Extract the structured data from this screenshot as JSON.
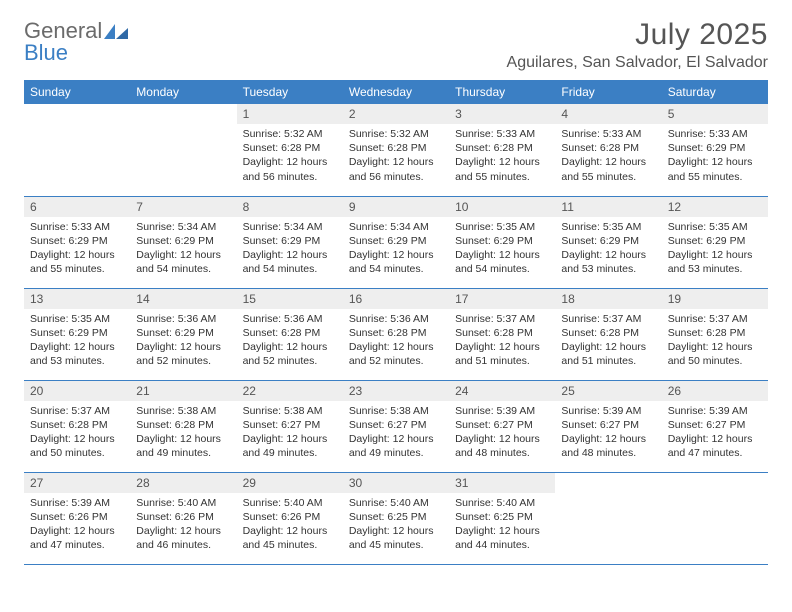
{
  "branding": {
    "word1": "General",
    "word2": "Blue",
    "logo_color": "#3b7fc4",
    "text_color_muted": "#6b6b6b"
  },
  "header": {
    "title": "July 2025",
    "location": "Aguilares, San Salvador, El Salvador"
  },
  "calendar": {
    "type": "table",
    "columns": [
      "Sunday",
      "Monday",
      "Tuesday",
      "Wednesday",
      "Thursday",
      "Friday",
      "Saturday"
    ],
    "header_bg": "#3b7fc4",
    "header_fg": "#ffffff",
    "daynum_bg": "#eeeeee",
    "daynum_fg": "#555555",
    "border_color": "#3b7fc4",
    "cell_font_size_pt": 8,
    "weeks": [
      [
        null,
        null,
        {
          "day": "1",
          "sunrise": "Sunrise: 5:32 AM",
          "sunset": "Sunset: 6:28 PM",
          "daylight": "Daylight: 12 hours and 56 minutes."
        },
        {
          "day": "2",
          "sunrise": "Sunrise: 5:32 AM",
          "sunset": "Sunset: 6:28 PM",
          "daylight": "Daylight: 12 hours and 56 minutes."
        },
        {
          "day": "3",
          "sunrise": "Sunrise: 5:33 AM",
          "sunset": "Sunset: 6:28 PM",
          "daylight": "Daylight: 12 hours and 55 minutes."
        },
        {
          "day": "4",
          "sunrise": "Sunrise: 5:33 AM",
          "sunset": "Sunset: 6:28 PM",
          "daylight": "Daylight: 12 hours and 55 minutes."
        },
        {
          "day": "5",
          "sunrise": "Sunrise: 5:33 AM",
          "sunset": "Sunset: 6:29 PM",
          "daylight": "Daylight: 12 hours and 55 minutes."
        }
      ],
      [
        {
          "day": "6",
          "sunrise": "Sunrise: 5:33 AM",
          "sunset": "Sunset: 6:29 PM",
          "daylight": "Daylight: 12 hours and 55 minutes."
        },
        {
          "day": "7",
          "sunrise": "Sunrise: 5:34 AM",
          "sunset": "Sunset: 6:29 PM",
          "daylight": "Daylight: 12 hours and 54 minutes."
        },
        {
          "day": "8",
          "sunrise": "Sunrise: 5:34 AM",
          "sunset": "Sunset: 6:29 PM",
          "daylight": "Daylight: 12 hours and 54 minutes."
        },
        {
          "day": "9",
          "sunrise": "Sunrise: 5:34 AM",
          "sunset": "Sunset: 6:29 PM",
          "daylight": "Daylight: 12 hours and 54 minutes."
        },
        {
          "day": "10",
          "sunrise": "Sunrise: 5:35 AM",
          "sunset": "Sunset: 6:29 PM",
          "daylight": "Daylight: 12 hours and 54 minutes."
        },
        {
          "day": "11",
          "sunrise": "Sunrise: 5:35 AM",
          "sunset": "Sunset: 6:29 PM",
          "daylight": "Daylight: 12 hours and 53 minutes."
        },
        {
          "day": "12",
          "sunrise": "Sunrise: 5:35 AM",
          "sunset": "Sunset: 6:29 PM",
          "daylight": "Daylight: 12 hours and 53 minutes."
        }
      ],
      [
        {
          "day": "13",
          "sunrise": "Sunrise: 5:35 AM",
          "sunset": "Sunset: 6:29 PM",
          "daylight": "Daylight: 12 hours and 53 minutes."
        },
        {
          "day": "14",
          "sunrise": "Sunrise: 5:36 AM",
          "sunset": "Sunset: 6:29 PM",
          "daylight": "Daylight: 12 hours and 52 minutes."
        },
        {
          "day": "15",
          "sunrise": "Sunrise: 5:36 AM",
          "sunset": "Sunset: 6:28 PM",
          "daylight": "Daylight: 12 hours and 52 minutes."
        },
        {
          "day": "16",
          "sunrise": "Sunrise: 5:36 AM",
          "sunset": "Sunset: 6:28 PM",
          "daylight": "Daylight: 12 hours and 52 minutes."
        },
        {
          "day": "17",
          "sunrise": "Sunrise: 5:37 AM",
          "sunset": "Sunset: 6:28 PM",
          "daylight": "Daylight: 12 hours and 51 minutes."
        },
        {
          "day": "18",
          "sunrise": "Sunrise: 5:37 AM",
          "sunset": "Sunset: 6:28 PM",
          "daylight": "Daylight: 12 hours and 51 minutes."
        },
        {
          "day": "19",
          "sunrise": "Sunrise: 5:37 AM",
          "sunset": "Sunset: 6:28 PM",
          "daylight": "Daylight: 12 hours and 50 minutes."
        }
      ],
      [
        {
          "day": "20",
          "sunrise": "Sunrise: 5:37 AM",
          "sunset": "Sunset: 6:28 PM",
          "daylight": "Daylight: 12 hours and 50 minutes."
        },
        {
          "day": "21",
          "sunrise": "Sunrise: 5:38 AM",
          "sunset": "Sunset: 6:28 PM",
          "daylight": "Daylight: 12 hours and 49 minutes."
        },
        {
          "day": "22",
          "sunrise": "Sunrise: 5:38 AM",
          "sunset": "Sunset: 6:27 PM",
          "daylight": "Daylight: 12 hours and 49 minutes."
        },
        {
          "day": "23",
          "sunrise": "Sunrise: 5:38 AM",
          "sunset": "Sunset: 6:27 PM",
          "daylight": "Daylight: 12 hours and 49 minutes."
        },
        {
          "day": "24",
          "sunrise": "Sunrise: 5:39 AM",
          "sunset": "Sunset: 6:27 PM",
          "daylight": "Daylight: 12 hours and 48 minutes."
        },
        {
          "day": "25",
          "sunrise": "Sunrise: 5:39 AM",
          "sunset": "Sunset: 6:27 PM",
          "daylight": "Daylight: 12 hours and 48 minutes."
        },
        {
          "day": "26",
          "sunrise": "Sunrise: 5:39 AM",
          "sunset": "Sunset: 6:27 PM",
          "daylight": "Daylight: 12 hours and 47 minutes."
        }
      ],
      [
        {
          "day": "27",
          "sunrise": "Sunrise: 5:39 AM",
          "sunset": "Sunset: 6:26 PM",
          "daylight": "Daylight: 12 hours and 47 minutes."
        },
        {
          "day": "28",
          "sunrise": "Sunrise: 5:40 AM",
          "sunset": "Sunset: 6:26 PM",
          "daylight": "Daylight: 12 hours and 46 minutes."
        },
        {
          "day": "29",
          "sunrise": "Sunrise: 5:40 AM",
          "sunset": "Sunset: 6:26 PM",
          "daylight": "Daylight: 12 hours and 45 minutes."
        },
        {
          "day": "30",
          "sunrise": "Sunrise: 5:40 AM",
          "sunset": "Sunset: 6:25 PM",
          "daylight": "Daylight: 12 hours and 45 minutes."
        },
        {
          "day": "31",
          "sunrise": "Sunrise: 5:40 AM",
          "sunset": "Sunset: 6:25 PM",
          "daylight": "Daylight: 12 hours and 44 minutes."
        },
        null,
        null
      ]
    ]
  }
}
